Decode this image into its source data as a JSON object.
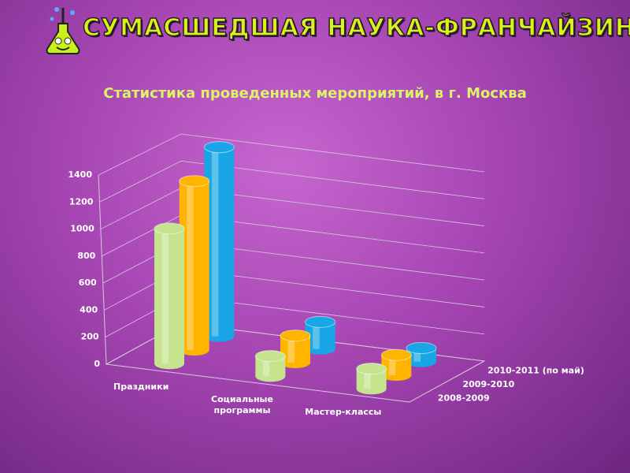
{
  "header": {
    "title": "СУМАСШЕДШАЯ НАУКА-ФРАНЧАЙЗИНГ"
  },
  "chart_data": {
    "type": "bar3d",
    "title": "Статистика проведенных мероприятий, в г. Москва",
    "categories": [
      "Праздники",
      "Социальные программы",
      "Мастер-классы"
    ],
    "series": [
      {
        "name": "2008-2009",
        "color": "#c6e48e",
        "values": [
          1000,
          150,
          150
        ]
      },
      {
        "name": "2009-2010",
        "color": "#ffb400",
        "values": [
          1250,
          200,
          150
        ]
      },
      {
        "name": "2010-2011 (по май)",
        "color": "#18a6e6",
        "values": [
          1400,
          200,
          100
        ]
      }
    ],
    "ylim": [
      0,
      1400
    ],
    "yticks": [
      0,
      200,
      400,
      600,
      800,
      1000,
      1200,
      1400
    ],
    "grid": true
  }
}
